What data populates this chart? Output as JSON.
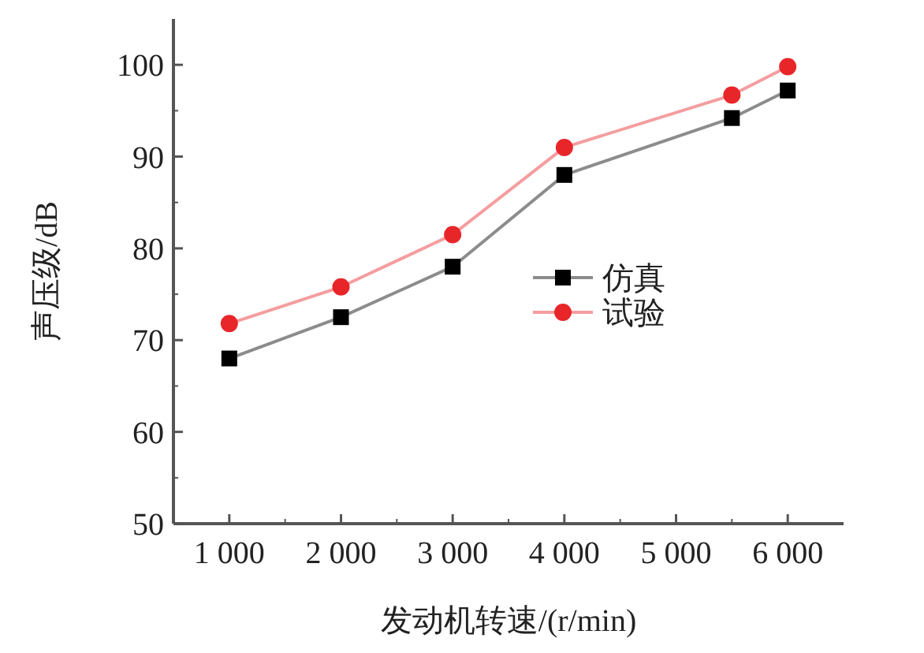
{
  "chart_data": {
    "type": "line",
    "xlabel": "发动机转速/(r/min)",
    "ylabel": "声压级/dB",
    "xlim": [
      500,
      6500
    ],
    "ylim": [
      50,
      105
    ],
    "xticks": [
      {
        "value": 1000,
        "label": "1 000"
      },
      {
        "value": 2000,
        "label": "2 000"
      },
      {
        "value": 3000,
        "label": "3 000"
      },
      {
        "value": 4000,
        "label": "4 000"
      },
      {
        "value": 5000,
        "label": "5 000"
      },
      {
        "value": 6000,
        "label": "6 000"
      }
    ],
    "yticks": [
      50,
      60,
      70,
      80,
      90,
      100
    ],
    "x": [
      1000,
      2000,
      3000,
      4000,
      5500,
      6000
    ],
    "series": [
      {
        "name": "仿真",
        "color": "#000000",
        "marker": "square",
        "values": [
          68,
          72.5,
          78,
          88,
          94.2,
          97.2
        ]
      },
      {
        "name": "试验",
        "color": "#e8262a",
        "marker": "circle",
        "values": [
          71.8,
          75.8,
          81.5,
          91,
          96.7,
          99.8
        ]
      }
    ],
    "legend": "right",
    "grid": false
  }
}
